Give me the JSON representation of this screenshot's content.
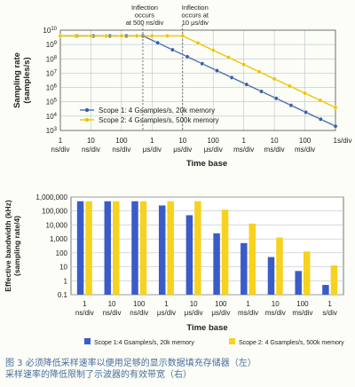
{
  "chart_data": [
    {
      "type": "line",
      "ylabel_lines": [
        "Sampling rate",
        "(samples/s)"
      ],
      "xlabel": "Time base",
      "scale": "log",
      "ylim": [
        1000,
        10000000000
      ],
      "y_ticks": [
        {
          "base": "10",
          "exp": "10"
        },
        {
          "base": "10",
          "exp": "9"
        },
        {
          "base": "10",
          "exp": "8"
        },
        {
          "base": "10",
          "exp": "7"
        },
        {
          "base": "10",
          "exp": "6"
        },
        {
          "base": "10",
          "exp": "5"
        },
        {
          "base": "10",
          "exp": "4"
        },
        {
          "base": "10",
          "exp": "3"
        }
      ],
      "x_categories": [
        [
          "1",
          "ns/div"
        ],
        [
          "10",
          "ns/div"
        ],
        [
          "100",
          "ns/div"
        ],
        [
          "1",
          "μs/div"
        ],
        [
          "10",
          "μs/div"
        ],
        [
          "100",
          "μs/div"
        ],
        [
          "1",
          "ms/div"
        ],
        [
          "10",
          "ms/div"
        ],
        [
          "100",
          "ms/div"
        ],
        [
          "1s/div",
          ""
        ]
      ],
      "annotations": [
        {
          "lines": [
            "Inflection",
            "occurs",
            "at 500 ns/div"
          ],
          "x": "500 ns/div"
        },
        {
          "lines": [
            "Inflection",
            "occurs at",
            "10 μs/div"
          ],
          "x": "10 μs/div"
        }
      ],
      "series": [
        {
          "name": "Scope 1: 4 Gsamples/s, 20k memory",
          "color": "#4a6fb5",
          "marker_color": "#3a5fa8",
          "points": [
            {
              "x": "1 ns/div",
              "y": 4000000000
            },
            {
              "x": "500 ns/div",
              "y": 4000000000
            },
            {
              "x": "1s/div",
              "y": 2000
            }
          ]
        },
        {
          "name": "Scope 2: 4 Gsamples/s, 500k memory",
          "color": "#f2c200",
          "marker_color": "#f2c200",
          "points": [
            {
              "x": "1 ns/div",
              "y": 4000000000
            },
            {
              "x": "10 μs/div",
              "y": 4000000000
            },
            {
              "x": "1s/div",
              "y": 40000
            }
          ]
        }
      ]
    },
    {
      "type": "bar",
      "ylabel_lines": [
        "Effective bandwidth (kHz)",
        "(sampling rate/4)"
      ],
      "xlabel": "Time base",
      "scale": "log",
      "ylim": [
        0.1,
        1000000
      ],
      "y_ticks": [
        "1,000,000",
        "100,000",
        "10,000",
        "1,000",
        "100",
        "10",
        "1",
        "0.1"
      ],
      "categories": [
        [
          "1",
          "ns/div"
        ],
        [
          "10",
          "ns/div"
        ],
        [
          "100",
          "ns/div"
        ],
        [
          "1",
          "μs/div"
        ],
        [
          "10",
          "μs/div"
        ],
        [
          "100",
          "μs/div"
        ],
        [
          "1",
          "ms/div"
        ],
        [
          "10",
          "ms/div"
        ],
        [
          "100",
          "ms/div"
        ],
        [
          "1",
          "s/div"
        ]
      ],
      "series": [
        {
          "name": "Scope 1:4 Gsamples/s, 20k memory",
          "color": "#3a5cc8",
          "values": [
            500000,
            500000,
            500000,
            250000,
            50000,
            2500,
            500,
            50,
            5,
            0.5
          ]
        },
        {
          "name": "Scope 2: 4 Gsamples/s, 500k memory",
          "color": "#f7d21e",
          "values": [
            500000,
            500000,
            500000,
            500000,
            500000,
            125000,
            12500,
            1250,
            125,
            12.5
          ]
        }
      ]
    }
  ],
  "caption": {
    "line1": "图 3  必须降低采样速率以便用足够的显示数据填充存储器（左）",
    "line2": "     采样速率的降低限制了示波器的有效带宽（右）"
  }
}
